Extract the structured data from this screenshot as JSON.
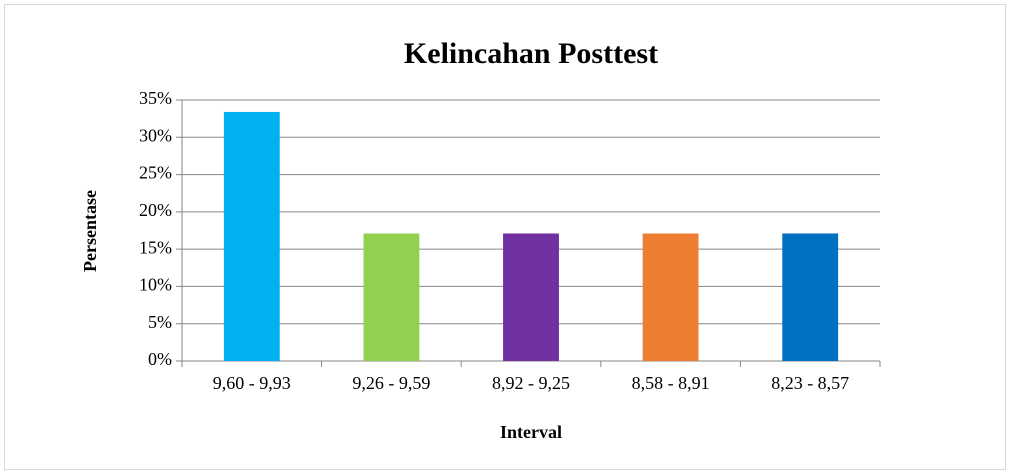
{
  "chart_data": {
    "type": "bar",
    "title": "Kelincahan Posttest",
    "x_label": "Interval",
    "y_label": "Persentase",
    "categories": [
      "9,60 - 9,93",
      "9,26 - 9,59",
      "8,92 - 9,25",
      "8,58 - 8,91",
      "8,23 - 8,57"
    ],
    "values": [
      33.4,
      17.1,
      17.1,
      17.1,
      17.1
    ],
    "colors": [
      "#00b0f0",
      "#92d050",
      "#7030a0",
      "#ed7d31",
      "#0070c0"
    ],
    "ylim": [
      0,
      35
    ],
    "yticks": [
      {
        "value": 0,
        "label": "0%"
      },
      {
        "value": 5,
        "label": "5%"
      },
      {
        "value": 10,
        "label": "10%"
      },
      {
        "value": 15,
        "label": "15%"
      },
      {
        "value": 20,
        "label": "20%"
      },
      {
        "value": 25,
        "label": "25%"
      },
      {
        "value": 30,
        "label": "30%"
      },
      {
        "value": 35,
        "label": "35%"
      }
    ],
    "grid": true
  }
}
